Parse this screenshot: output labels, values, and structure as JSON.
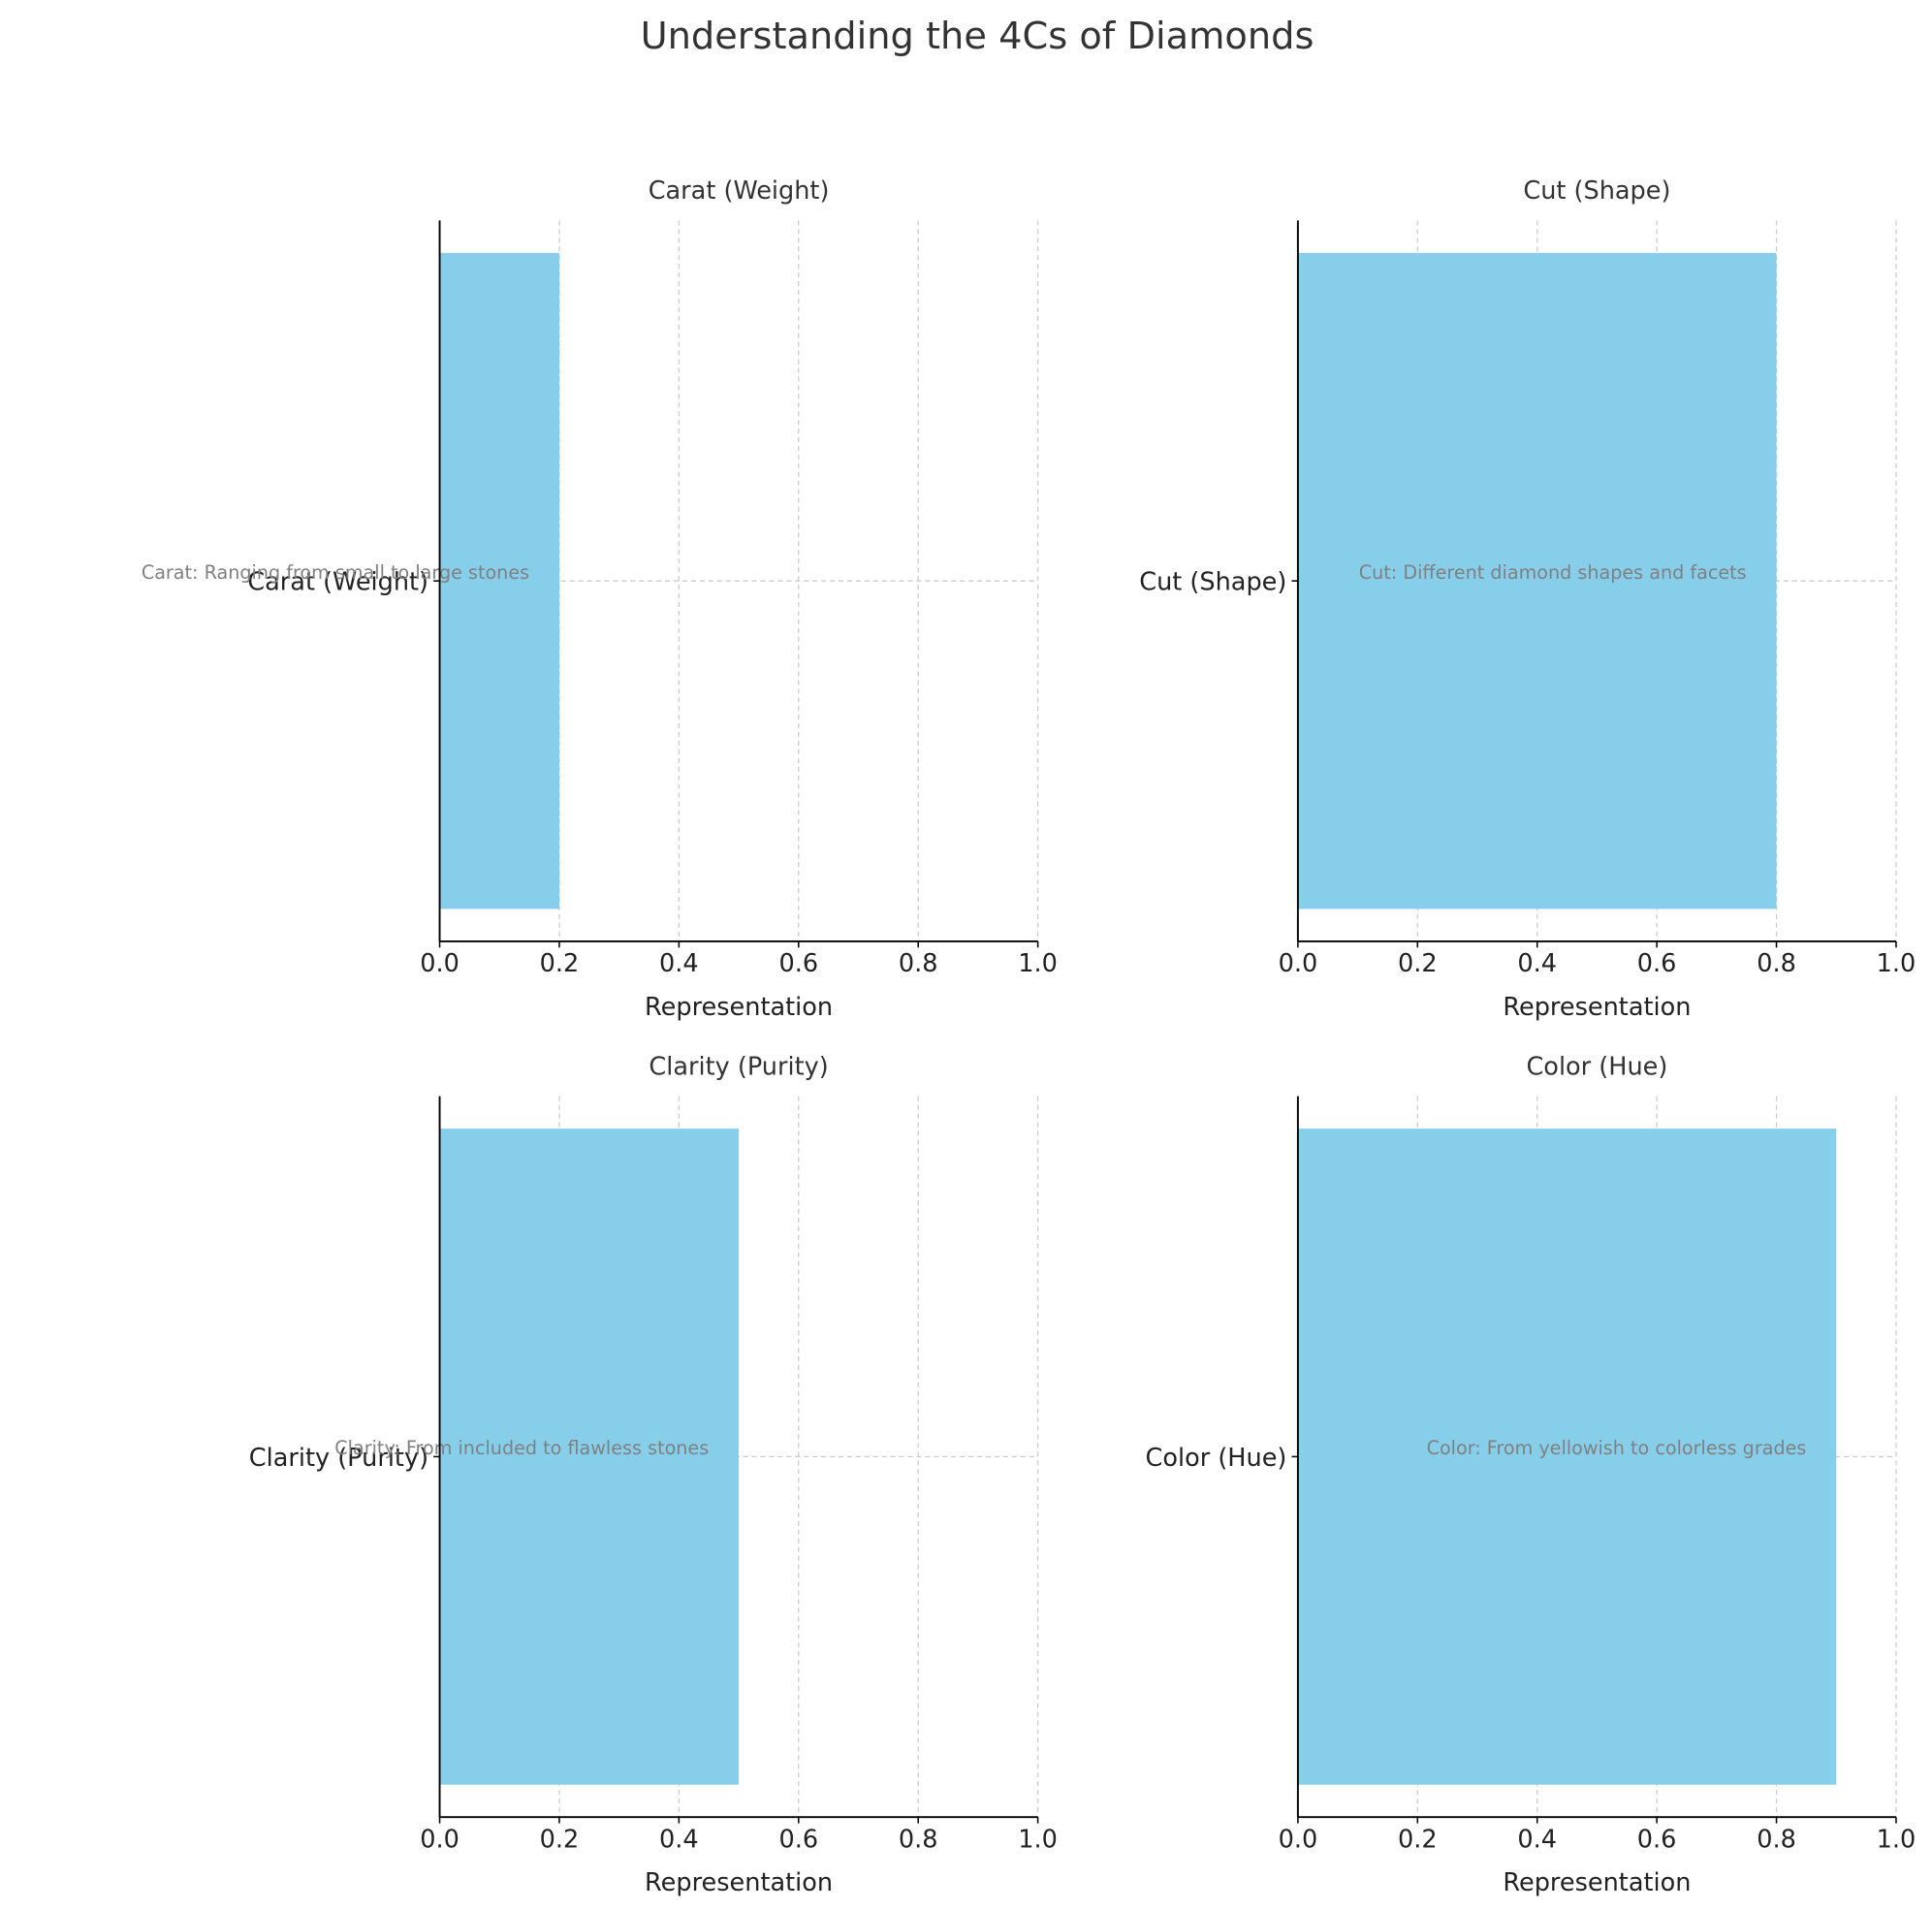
{
  "title": "Understanding the 4Cs of Diamonds",
  "chart_data": [
    {
      "type": "bar",
      "orientation": "horizontal",
      "title": "Carat (Weight)",
      "categories": [
        "Carat (Weight)"
      ],
      "values": [
        0.2
      ],
      "annotations": [
        "Carat: Ranging from small to large stones"
      ],
      "xlabel": "Representation",
      "color": "#87ceeb",
      "grid": true,
      "xlim": [
        0,
        1
      ],
      "xticks": [
        {
          "value": 0,
          "label": "0.0"
        },
        0.2,
        0.4,
        0.6,
        0.8,
        {
          "value": 1,
          "label": "1.0"
        }
      ]
    },
    {
      "type": "bar",
      "orientation": "horizontal",
      "title": "Cut (Shape)",
      "categories": [
        "Cut (Shape)"
      ],
      "values": [
        0.8
      ],
      "annotations": [
        "Cut: Different diamond shapes and facets"
      ],
      "xlabel": "Representation",
      "color": "#87ceeb",
      "grid": true,
      "xlim": [
        0,
        1
      ],
      "xticks": [
        {
          "value": 0,
          "label": "0.0"
        },
        0.2,
        0.4,
        0.6,
        0.8,
        {
          "value": 1,
          "label": "1.0"
        }
      ]
    },
    {
      "type": "bar",
      "orientation": "horizontal",
      "title": "Clarity (Purity)",
      "categories": [
        "Clarity (Purity)"
      ],
      "values": [
        0.5
      ],
      "annotations": [
        "Clarity: From included to flawless stones"
      ],
      "xlabel": "Representation",
      "color": "#87ceeb",
      "grid": true,
      "xlim": [
        0,
        1
      ],
      "xticks": [
        {
          "value": 0,
          "label": "0.0"
        },
        0.2,
        0.4,
        0.6,
        0.8,
        {
          "value": 1,
          "label": "1.0"
        }
      ]
    },
    {
      "type": "bar",
      "orientation": "horizontal",
      "title": "Color (Hue)",
      "categories": [
        "Color (Hue)"
      ],
      "values": [
        0.9
      ],
      "annotations": [
        "Color: From yellowish to colorless grades"
      ],
      "xlabel": "Representation",
      "color": "#87ceeb",
      "grid": true,
      "xlim": [
        0,
        1
      ],
      "xticks": [
        {
          "value": 0,
          "label": "0.0"
        },
        0.2,
        0.4,
        0.6,
        0.8,
        {
          "value": 1,
          "label": "1.0"
        }
      ]
    }
  ]
}
